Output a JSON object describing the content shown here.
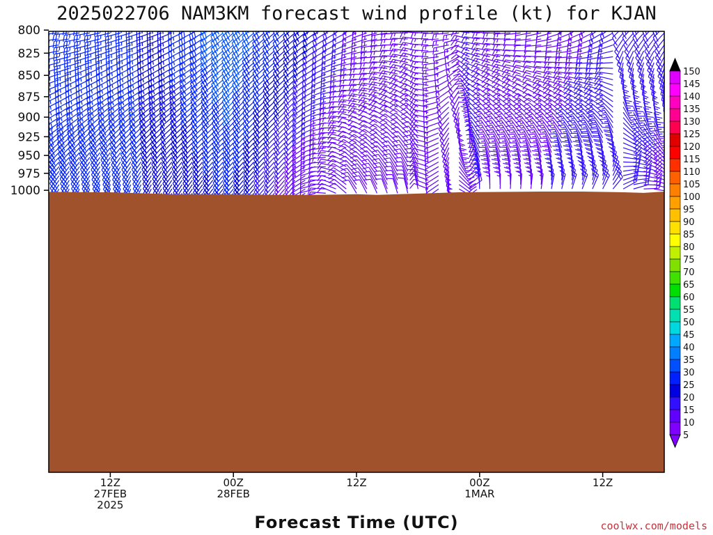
{
  "title": "2025022706 NAM3KM forecast wind profile (kt) for KJAN",
  "credit": "coolwx.com/models",
  "chart_data": {
    "type": "wind barb time-height",
    "xlabel": "Forecast Time (UTC)",
    "ylabel": "",
    "yticks": [
      800,
      825,
      850,
      875,
      900,
      925,
      950,
      975,
      1000
    ],
    "ylim": [
      790,
      1012
    ],
    "xlim_hours_from_start": [
      0,
      60
    ],
    "x_ticks": [
      {
        "hour": 6,
        "lines": [
          "12Z",
          "27FEB",
          "2025"
        ]
      },
      {
        "hour": 18,
        "lines": [
          "00Z",
          "28FEB"
        ]
      },
      {
        "hour": 30,
        "lines": [
          "12Z"
        ]
      },
      {
        "hour": 42,
        "lines": [
          "00Z",
          "1MAR"
        ]
      },
      {
        "hour": 54,
        "lines": [
          "12Z"
        ]
      }
    ],
    "surface_pressure": [
      {
        "hour": 0,
        "p": 1002.5
      },
      {
        "hour": 6,
        "p": 1003
      },
      {
        "hour": 8,
        "p": 1004
      },
      {
        "hour": 12,
        "p": 1006
      },
      {
        "hour": 18,
        "p": 1006
      },
      {
        "hour": 22,
        "p": 1007
      },
      {
        "hour": 26,
        "p": 1007
      },
      {
        "hour": 30,
        "p": 1006
      },
      {
        "hour": 32,
        "p": 1007
      },
      {
        "hour": 36,
        "p": 1005
      },
      {
        "hour": 40,
        "p": 1003
      },
      {
        "hour": 48,
        "p": 1002
      },
      {
        "hour": 52,
        "p": 1002
      },
      {
        "hour": 56,
        "p": 1003
      },
      {
        "hour": 58,
        "p": 1004
      },
      {
        "hour": 60,
        "p": 1002
      }
    ],
    "colorbar": {
      "labels": [
        5,
        10,
        15,
        20,
        25,
        30,
        35,
        40,
        45,
        50,
        55,
        60,
        65,
        70,
        75,
        80,
        85,
        90,
        95,
        100,
        105,
        110,
        115,
        120,
        125,
        130,
        135,
        140,
        145,
        150
      ],
      "colors": [
        "#8000ff",
        "#6000ff",
        "#3010ff",
        "#0000e0",
        "#0020ff",
        "#0050ff",
        "#0080ff",
        "#00a8ff",
        "#00d8e0",
        "#00e0b0",
        "#00e070",
        "#00e000",
        "#40e000",
        "#80e000",
        "#c0f000",
        "#ffff00",
        "#ffe000",
        "#ffc000",
        "#ffa000",
        "#ff8000",
        "#ff6000",
        "#ff3000",
        "#ff0000",
        "#e00000",
        "#ff0050",
        "#ff0090",
        "#ff00c0",
        "#ff00ff",
        "#e000ff"
      ]
    },
    "series": [
      {
        "hour": 0,
        "speed_kt": 30,
        "dir_deg": 210,
        "top_speed_kt": 25,
        "top_dir_deg": 270
      },
      {
        "hour": 6,
        "speed_kt": 30,
        "dir_deg": 200,
        "top_speed_kt": 25,
        "top_dir_deg": 260
      },
      {
        "hour": 12,
        "speed_kt": 20,
        "dir_deg": 210,
        "top_speed_kt": 25,
        "top_dir_deg": 250
      },
      {
        "hour": 18,
        "speed_kt": 25,
        "dir_deg": 220,
        "top_speed_kt": 35,
        "top_dir_deg": 230
      },
      {
        "hour": 24,
        "speed_kt": 10,
        "dir_deg": 220,
        "top_speed_kt": 25,
        "top_dir_deg": 230
      },
      {
        "hour": 30,
        "speed_kt": 10,
        "dir_deg": 330,
        "top_speed_kt": 15,
        "top_dir_deg": 240
      },
      {
        "hour": 36,
        "speed_kt": 10,
        "dir_deg": 350,
        "top_speed_kt": 15,
        "top_dir_deg": 270
      },
      {
        "hour": 42,
        "speed_kt": 15,
        "dir_deg": 0,
        "top_speed_kt": 15,
        "top_dir_deg": 270
      },
      {
        "hour": 48,
        "speed_kt": 15,
        "dir_deg": 10,
        "top_speed_kt": 10,
        "top_dir_deg": 250
      },
      {
        "hour": 54,
        "speed_kt": 20,
        "dir_deg": 30,
        "top_speed_kt": 15,
        "top_dir_deg": 230
      },
      {
        "hour": 60,
        "speed_kt": 10,
        "dir_deg": 110,
        "top_speed_kt": 20,
        "top_dir_deg": 230
      }
    ]
  }
}
